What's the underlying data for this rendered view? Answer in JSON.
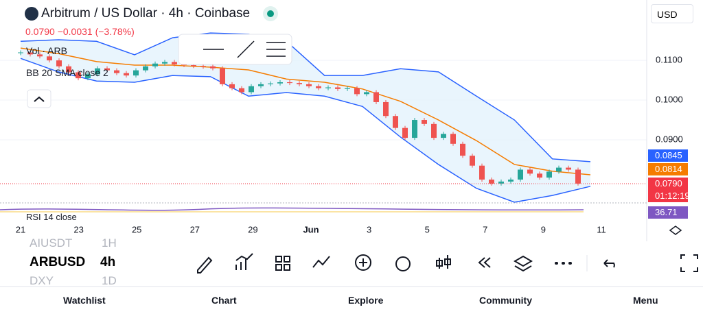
{
  "header": {
    "title": "Arbitrum / US Dollar · 4h · Coinbase",
    "price_change": "0.0790  −0.0031 (−3.78%)",
    "currency": "USD"
  },
  "indicators": [
    "Vol · ARB",
    "BB 20 SMA close 2",
    "RSI 14 close"
  ],
  "price_badges": [
    "0.0845",
    "0.0814",
    "0.0790",
    "01:12:19",
    "36.71"
  ],
  "symbols": [
    {
      "name": "AIUSDT",
      "interval": "1H"
    },
    {
      "name": "ARBUSD",
      "interval": "4h"
    },
    {
      "name": "DXY",
      "interval": "1D"
    }
  ],
  "nav": [
    "Watchlist",
    "Chart",
    "Explore",
    "Community",
    "Menu"
  ],
  "chart_data": {
    "type": "candlestick",
    "x_labels": [
      "21",
      "23",
      "25",
      "27",
      "29",
      "Jun",
      "3",
      "5",
      "7",
      "9",
      "11"
    ],
    "close": [
      0.112,
      0.1115,
      0.111,
      0.11,
      0.1085,
      0.107,
      0.1055,
      0.1065,
      0.108,
      0.1075,
      0.1068,
      0.1062,
      0.1075,
      0.1085,
      0.1092,
      0.1096,
      0.109,
      0.1088,
      0.1086,
      0.1085,
      0.108,
      0.104,
      0.103,
      0.102,
      0.1035,
      0.104,
      0.1042,
      0.1045,
      0.1043,
      0.104,
      0.1035,
      0.103,
      0.1032,
      0.1028,
      0.103,
      0.1015,
      0.102,
      0.0995,
      0.096,
      0.093,
      0.0905,
      0.095,
      0.094,
      0.0905,
      0.0915,
      0.089,
      0.086,
      0.0835,
      0.08,
      0.079,
      0.0795,
      0.08,
      0.0825,
      0.0815,
      0.0805,
      0.082,
      0.083,
      0.0825,
      0.079
    ],
    "up_color": "#26a69a",
    "down_color": "#ef5350",
    "bands": [
      {
        "color": "#2962ff",
        "values": [
          0.1148,
          0.1152,
          0.1148,
          0.1114,
          0.1157,
          0.1169,
          0.1166,
          0.1148,
          0.1062,
          0.1062,
          0.1079,
          0.1071,
          0.101,
          0.095,
          0.0852,
          0.0845
        ]
      },
      {
        "color": "#f57c00",
        "values": [
          0.1131,
          0.1117,
          0.1097,
          0.1088,
          0.1088,
          0.1083,
          0.1076,
          0.1053,
          0.1045,
          0.1028,
          0.0997,
          0.095,
          0.0898,
          0.0838,
          0.0821,
          0.0812
        ]
      },
      {
        "color": "#2962ff",
        "values": [
          0.1105,
          0.1071,
          0.1048,
          0.1045,
          0.1062,
          0.1059,
          0.101,
          0.1019,
          0.101,
          0.0984,
          0.0907,
          0.0838,
          0.0778,
          0.0743,
          0.076,
          0.0783
        ]
      }
    ],
    "band_fill": "#e3f2fd",
    "ylim": [
      0.0743,
      0.1252
    ],
    "yticks": [
      {
        "value": 0.11,
        "label": "0.1100"
      },
      {
        "value": 0.1,
        "label": "0.1000"
      },
      {
        "value": 0.09,
        "label": "0.0900"
      }
    ]
  }
}
